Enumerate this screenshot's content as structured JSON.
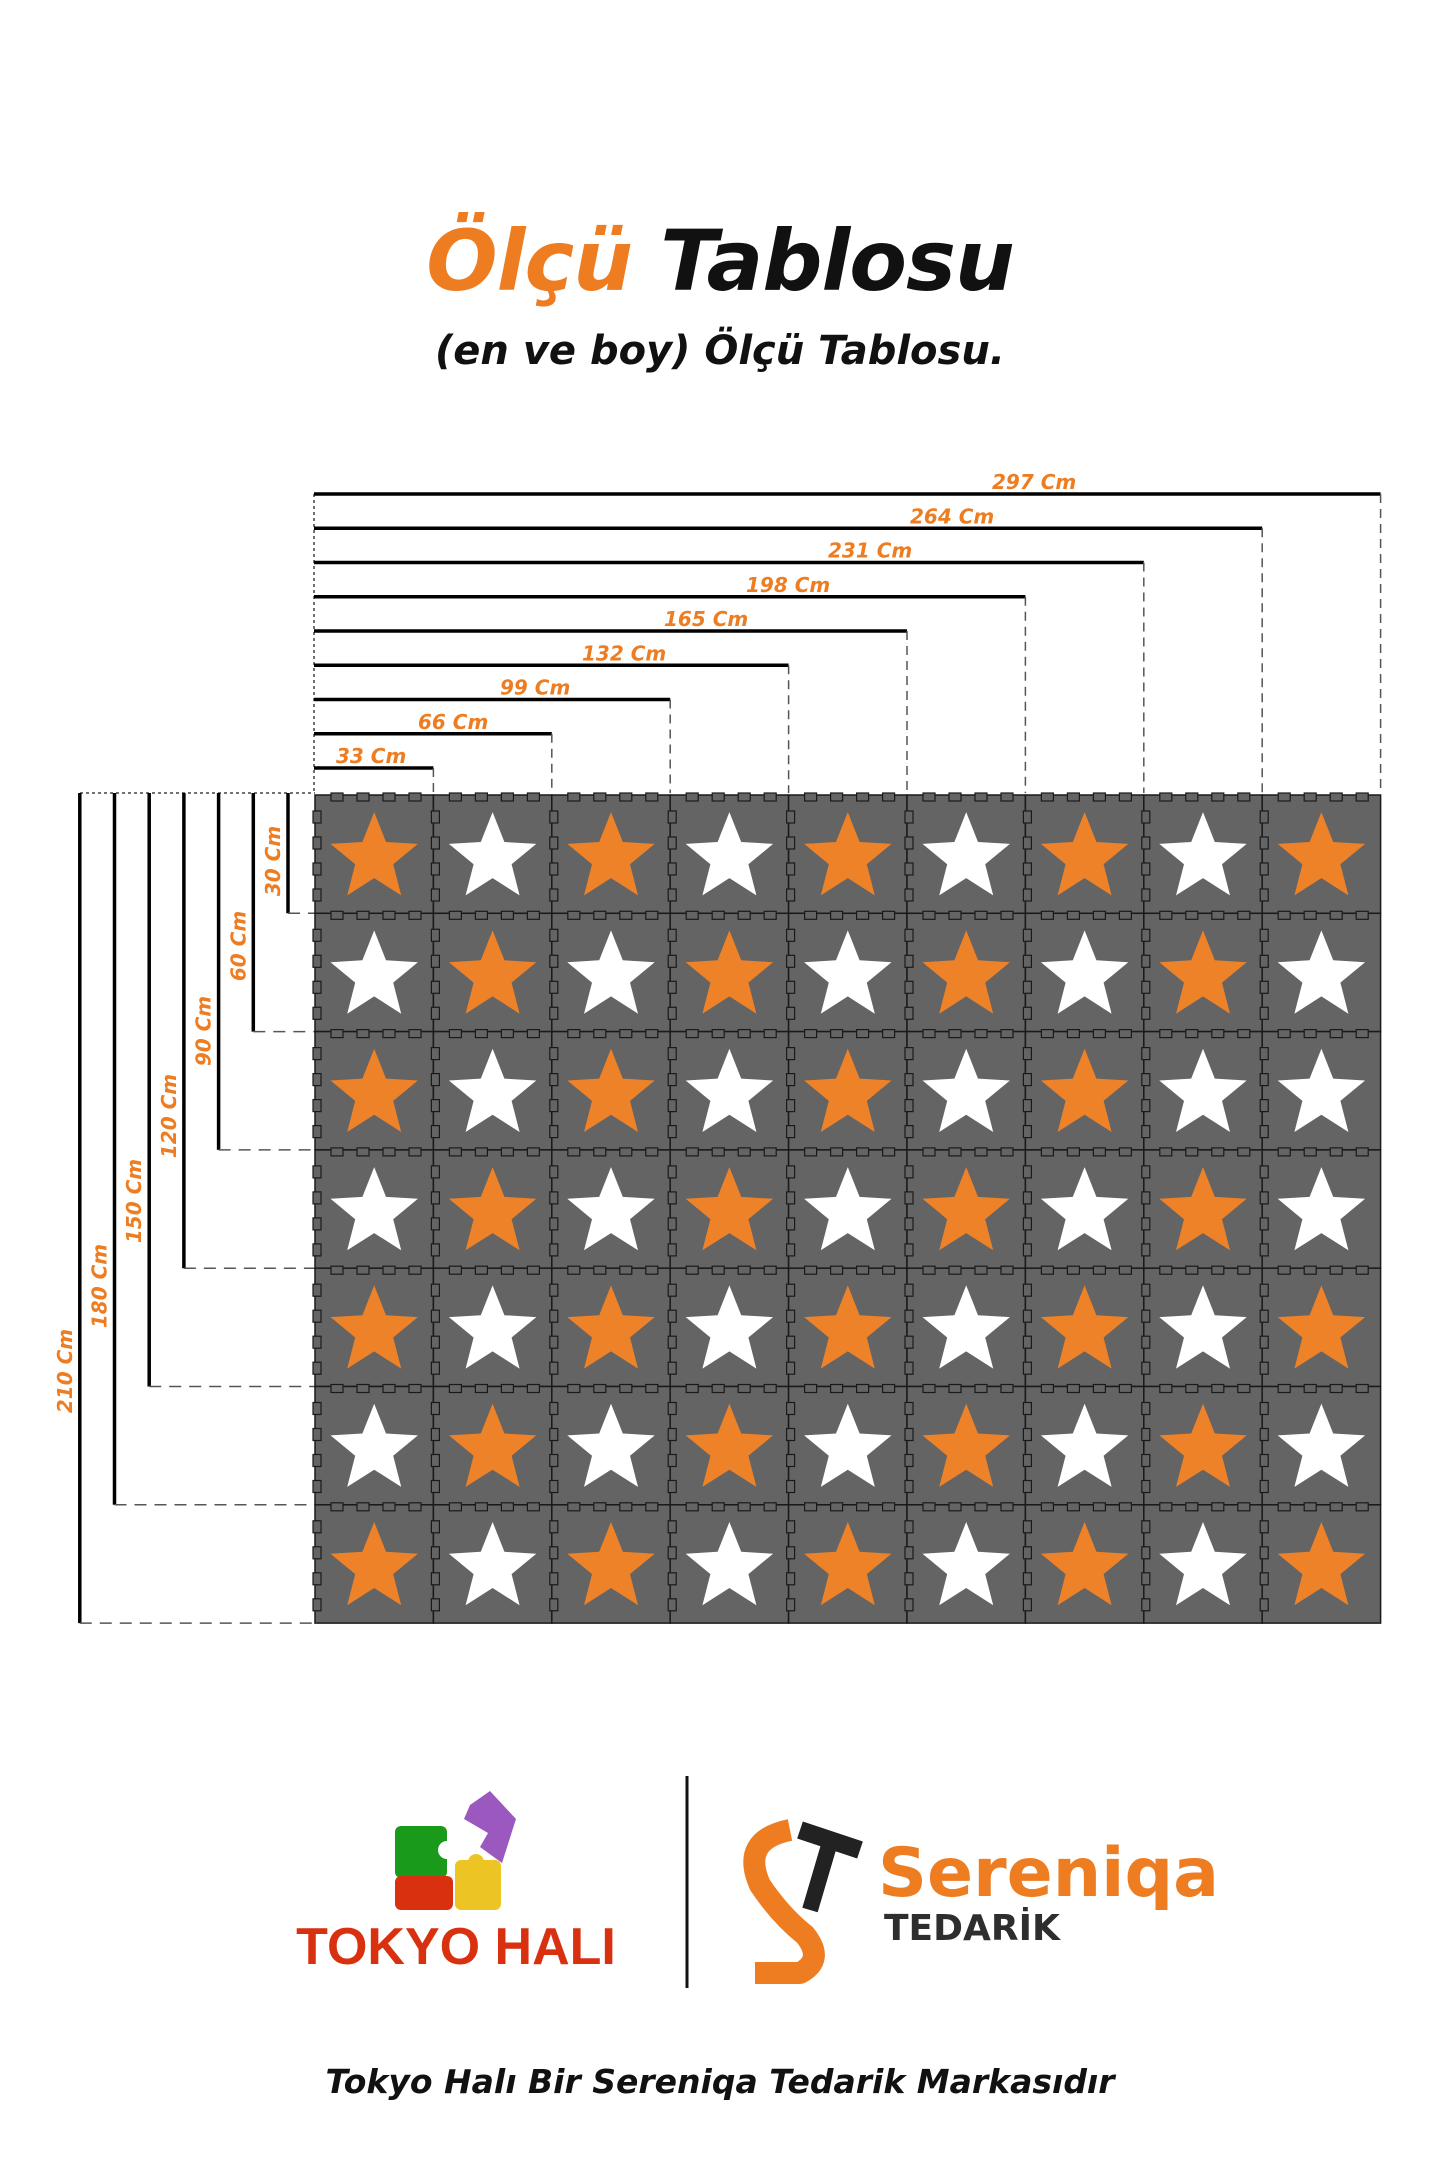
{
  "header": {
    "title_accent": "Ölçü",
    "title_main": "Tablosu",
    "subtitle": "(en ve boy) Ölçü Tablosu."
  },
  "width_labels": [
    "33 Cm",
    "66 Cm",
    "99 Cm",
    "132 Cm",
    "165 Cm",
    "198 Cm",
    "231 Cm",
    "264 Cm",
    "297 Cm"
  ],
  "height_labels": [
    "30 Cm",
    "60 Cm",
    "90 Cm",
    "120 Cm",
    "150 Cm",
    "180 Cm",
    "210 Cm"
  ],
  "mat_grid": {
    "columns": 9,
    "rows": 7,
    "star_pattern": [
      "OWOWOWOWO",
      "WOWOWOWOW",
      "OWOWOWOWW",
      "WOWOWOWOW",
      "OWOWOWOWO",
      "WOWOWOWOW",
      "OWOWOWOWO"
    ]
  },
  "colors": {
    "accent": "#ee7d22",
    "star_orange": "#ee8228",
    "star_white": "#ffffff",
    "tile": "#646464",
    "tokyo_red": "#d9300f",
    "tedarik_dark": "#2e2e2e"
  },
  "logos": {
    "tokyo": "TOKYO HALI",
    "sereniqa": "Sereniqa",
    "tedarik": "TEDARİK"
  },
  "footer": "Tokyo Halı Bir Sereniqa Tedarik Markasıdır"
}
